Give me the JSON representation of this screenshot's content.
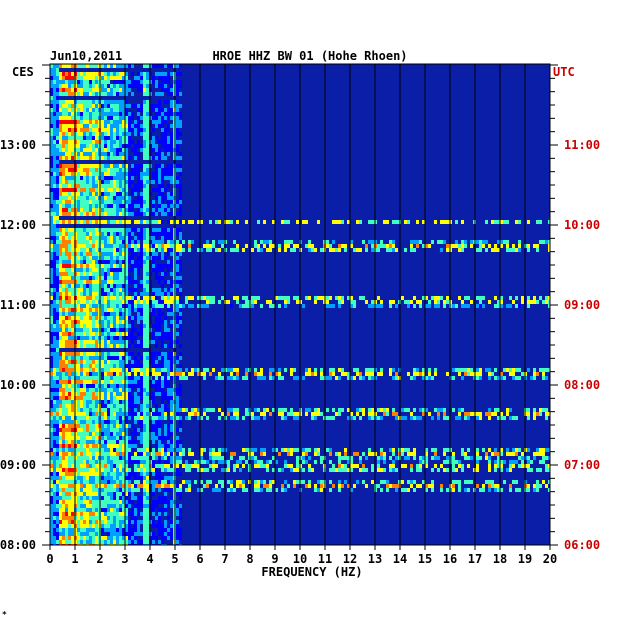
{
  "chart_data": {
    "type": "heatmap",
    "date_label": "Jun10,2011",
    "title": "HROE HHZ BW 01 (Hohe Rhoen)",
    "left_timezone": "CES",
    "right_timezone": "UTC",
    "xlabel": "FREQUENCY (HZ)",
    "xlim": [
      0,
      20
    ],
    "x_ticks": [
      "0",
      "1",
      "2",
      "3",
      "4",
      "5",
      "6",
      "7",
      "8",
      "9",
      "10",
      "11",
      "12",
      "13",
      "14",
      "15",
      "16",
      "17",
      "18",
      "19",
      "20"
    ],
    "left_ticks": [
      "08:00",
      "09:00",
      "10:00",
      "11:00",
      "12:00",
      "13:00"
    ],
    "right_ticks": [
      "06:00",
      "07:00",
      "08:00",
      "09:00",
      "10:00",
      "11:00"
    ],
    "time_range_ces": [
      "08:00",
      "13:50"
    ],
    "colors": {
      "background": "#0a1ea8",
      "grid": "#000000",
      "left_axis_text": "#000000",
      "right_axis_text": "#cc0000",
      "colormap": [
        "#00008f",
        "#0000ff",
        "#00a0ff",
        "#40ffc0",
        "#ffff00",
        "#ff8000",
        "#ff0000"
      ]
    },
    "features": {
      "strong_energy_band_hz": [
        0.3,
        3.0
      ],
      "persistent_lines_hz": [
        3.75,
        4.9
      ],
      "sporadic_horizontal_events_ces": [
        "08:46",
        "09:00",
        "09:10",
        "09:40",
        "10:10",
        "11:05",
        "11:45",
        "12:05"
      ]
    },
    "footnote_mark": "*"
  }
}
